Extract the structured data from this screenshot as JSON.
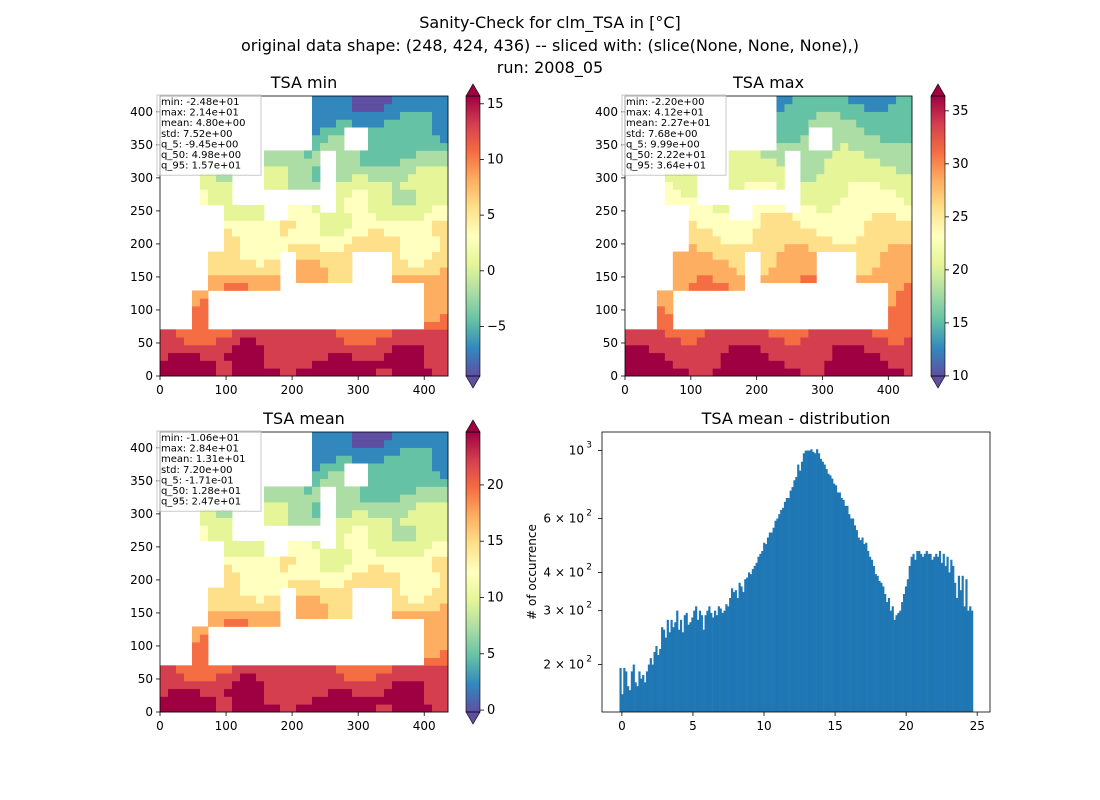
{
  "figure": {
    "title_lines": [
      "Sanity-Check for clm_TSA in [°C]",
      "original data shape: (248, 424, 436) -- sliced with: (slice(None, None, None),)",
      "run: 2008_05"
    ]
  },
  "chart_data": [
    {
      "type": "heatmap",
      "title": "TSA min",
      "colormap": "Spectral_r",
      "xlim": [
        0,
        436
      ],
      "ylim": [
        0,
        424
      ],
      "xticks": [
        0,
        100,
        200,
        300,
        400
      ],
      "yticks": [
        0,
        50,
        100,
        150,
        200,
        250,
        300,
        350,
        400
      ],
      "clim": [
        -9.45,
        15.7
      ],
      "colorbar_ticks": [
        -5,
        0,
        5,
        10,
        15
      ],
      "colorbar_tick_labels": [
        "−5",
        "0",
        "5",
        "10",
        "15"
      ],
      "stats": [
        "min: -2.48e+01",
        "max: 2.14e+01",
        "mean: 4.80e+00",
        "std: 7.52e+00",
        "q_5: -9.45e+00",
        "q_50: 4.98e+00",
        "q_95: 1.57e+01"
      ]
    },
    {
      "type": "heatmap",
      "title": "TSA max",
      "colormap": "Spectral_r",
      "xlim": [
        0,
        436
      ],
      "ylim": [
        0,
        424
      ],
      "xticks": [
        0,
        100,
        200,
        300,
        400
      ],
      "yticks": [
        0,
        50,
        100,
        150,
        200,
        250,
        300,
        350,
        400
      ],
      "clim": [
        9.99,
        36.4
      ],
      "colorbar_ticks": [
        10,
        15,
        20,
        25,
        30,
        35
      ],
      "colorbar_tick_labels": [
        "10",
        "15",
        "20",
        "25",
        "30",
        "35"
      ],
      "stats": [
        "min: -2.20e+00",
        "max: 4.12e+01",
        "mean: 2.27e+01",
        "std: 7.68e+00",
        "q_5: 9.99e+00",
        "q_50: 2.22e+01",
        "q_95: 3.64e+01"
      ]
    },
    {
      "type": "heatmap",
      "title": "TSA mean",
      "colormap": "Spectral_r",
      "xlim": [
        0,
        436
      ],
      "ylim": [
        0,
        424
      ],
      "xticks": [
        0,
        100,
        200,
        300,
        400
      ],
      "yticks": [
        0,
        50,
        100,
        150,
        200,
        250,
        300,
        350,
        400
      ],
      "clim": [
        -0.171,
        24.7
      ],
      "colorbar_ticks": [
        0,
        5,
        10,
        15,
        20
      ],
      "colorbar_tick_labels": [
        "0",
        "5",
        "10",
        "15",
        "20"
      ],
      "stats": [
        "min: -1.06e+01",
        "max: 2.84e+01",
        "mean: 1.31e+01",
        "std: 7.20e+00",
        "q_5: -1.71e-01",
        "q_50: 1.28e+01",
        "q_95: 2.47e+01"
      ]
    },
    {
      "type": "bar",
      "title": "TSA mean - distribution",
      "ylabel": "# of occurrence",
      "xlabel": "",
      "yscale": "log",
      "xlim": [
        -1.4,
        25.9
      ],
      "ylim": [
        140,
        1150
      ],
      "xticks": [
        0,
        5,
        10,
        15,
        20,
        25
      ],
      "yticks": [
        200,
        300,
        400,
        600,
        1000
      ],
      "ytick_labels": [
        {
          "base": "2 × 10",
          "exp": "2"
        },
        {
          "base": "3 × 10",
          "exp": "2"
        },
        {
          "base": "4 × 10",
          "exp": "2"
        },
        {
          "base": "6 × 10",
          "exp": "2"
        },
        {
          "base": "10",
          "exp": "3"
        }
      ],
      "color": "#1f77b4",
      "bin_range": [
        -0.171,
        24.7
      ],
      "values": [
        195,
        160,
        195,
        190,
        170,
        165,
        190,
        200,
        175,
        170,
        190,
        180,
        185,
        175,
        190,
        200,
        210,
        200,
        220,
        230,
        215,
        225,
        265,
        260,
        245,
        280,
        255,
        280,
        265,
        275,
        300,
        260,
        280,
        255,
        290,
        295,
        270,
        275,
        285,
        300,
        310,
        280,
        300,
        290,
        260,
        290,
        300,
        310,
        295,
        285,
        300,
        290,
        310,
        305,
        295,
        300,
        315,
        310,
        330,
        355,
        345,
        350,
        330,
        370,
        360,
        345,
        380,
        385,
        400,
        395,
        410,
        420,
        430,
        450,
        460,
        470,
        500,
        495,
        520,
        540,
        540,
        560,
        590,
        600,
        620,
        640,
        650,
        680,
        700,
        700,
        740,
        760,
        800,
        820,
        900,
        860,
        920,
        980,
        1000,
        1000,
        1000,
        1010,
        990,
        980,
        1010,
        980,
        940,
        920,
        900,
        870,
        840,
        830,
        810,
        780,
        770,
        730,
        730,
        700,
        690,
        660,
        660,
        620,
        600,
        600,
        570,
        550,
        520,
        510,
        520,
        495,
        500,
        470,
        450,
        440,
        420,
        395,
        390,
        375,
        370,
        360,
        340,
        320,
        330,
        300,
        310,
        280,
        290,
        295,
        300,
        320,
        340,
        360,
        380,
        420,
        450,
        460,
        440,
        470,
        470,
        460,
        450,
        460,
        470,
        460,
        460,
        440,
        450,
        460,
        450,
        470,
        430,
        460,
        420,
        450,
        400,
        440,
        420,
        370,
        330,
        390,
        350,
        390,
        310,
        380,
        300,
        310,
        300
      ]
    }
  ]
}
